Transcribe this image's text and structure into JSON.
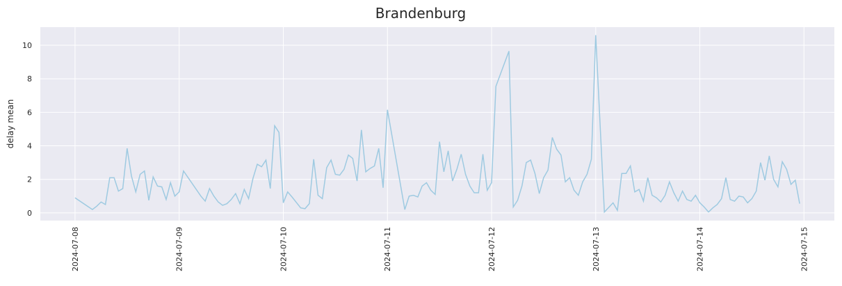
{
  "chart_data": {
    "type": "line",
    "title": "Brandenburg",
    "y_label": "delay mean",
    "grid": true,
    "background": "#eaeaf2",
    "xlim": [
      -8,
      175
    ],
    "ylim": [
      -0.46,
      11.08
    ],
    "xticks": [
      {
        "value": 0,
        "label": "2024-07-08"
      },
      {
        "value": 24,
        "label": "2024-07-09"
      },
      {
        "value": 48,
        "label": "2024-07-10"
      },
      {
        "value": 72,
        "label": "2024-07-11"
      },
      {
        "value": 96,
        "label": "2024-07-12"
      },
      {
        "value": 120,
        "label": "2024-07-13"
      },
      {
        "value": 144,
        "label": "2024-07-14"
      },
      {
        "value": 168,
        "label": "2024-07-15"
      }
    ],
    "yticks": [
      0,
      2,
      4,
      6,
      8,
      10
    ],
    "series": [
      {
        "color": "#9ecae1",
        "x": [
          0,
          4,
          5,
          6,
          7,
          8,
          9,
          10,
          11,
          12,
          13,
          14,
          15,
          16,
          17,
          18,
          19,
          20,
          21,
          22,
          23,
          24,
          25,
          29,
          30,
          31,
          32,
          33,
          34,
          35,
          36,
          37,
          38,
          39,
          40,
          41,
          42,
          43,
          44,
          45,
          46,
          47,
          48,
          49,
          50,
          52,
          53,
          54,
          55,
          56,
          57,
          58,
          59,
          60,
          61,
          62,
          63,
          64,
          65,
          66,
          67,
          68,
          69,
          70,
          71,
          72,
          76,
          77,
          78,
          79,
          80,
          81,
          82,
          83,
          84,
          85,
          86,
          87,
          88,
          89,
          90,
          91,
          92,
          93,
          94,
          95,
          96,
          97,
          100,
          101,
          102,
          103,
          104,
          105,
          106,
          107,
          108,
          109,
          110,
          111,
          112,
          113,
          114,
          115,
          116,
          117,
          118,
          119,
          120,
          122,
          124,
          125,
          126,
          127,
          128,
          129,
          130,
          131,
          132,
          133,
          134,
          135,
          136,
          137,
          138,
          139,
          140,
          141,
          142,
          143,
          144,
          145,
          146,
          147,
          148,
          149,
          150,
          151,
          152,
          153,
          154,
          155,
          156,
          157,
          158,
          159,
          160,
          161,
          162,
          163,
          164,
          165,
          166,
          167
        ],
        "values": [
          0.9,
          0.2,
          0.4,
          0.65,
          0.5,
          2.1,
          2.1,
          1.3,
          1.45,
          3.85,
          2.2,
          1.25,
          2.3,
          2.5,
          0.75,
          2.15,
          1.6,
          1.55,
          0.8,
          1.8,
          1.0,
          1.25,
          2.5,
          1.0,
          0.7,
          1.45,
          1.0,
          0.65,
          0.45,
          0.55,
          0.8,
          1.15,
          0.55,
          1.4,
          0.85,
          2.05,
          2.9,
          2.75,
          3.15,
          1.45,
          5.2,
          4.8,
          0.6,
          1.25,
          0.95,
          0.3,
          0.25,
          0.55,
          3.2,
          1.05,
          0.85,
          2.7,
          3.15,
          2.3,
          2.25,
          2.6,
          3.45,
          3.25,
          1.9,
          4.95,
          2.45,
          2.65,
          2.8,
          3.85,
          1.5,
          6.15,
          0.2,
          1.0,
          1.05,
          0.95,
          1.6,
          1.8,
          1.35,
          1.1,
          4.25,
          2.45,
          3.7,
          1.9,
          2.6,
          3.5,
          2.3,
          1.6,
          1.2,
          1.2,
          3.5,
          1.35,
          1.8,
          7.55,
          9.65,
          0.35,
          0.75,
          1.6,
          3.0,
          3.15,
          2.35,
          1.15,
          2.1,
          2.55,
          4.5,
          3.8,
          3.45,
          1.85,
          2.1,
          1.35,
          1.05,
          1.85,
          2.3,
          3.2,
          10.6,
          0.05,
          0.6,
          0.15,
          2.35,
          2.35,
          2.8,
          1.25,
          1.4,
          0.7,
          2.1,
          1.05,
          0.9,
          0.65,
          1.05,
          1.85,
          1.2,
          0.7,
          1.3,
          0.8,
          0.7,
          1.05,
          0.6,
          0.35,
          0.05,
          0.3,
          0.5,
          0.85,
          2.1,
          0.8,
          0.7,
          1.0,
          0.95,
          0.6,
          0.85,
          1.3,
          3.0,
          1.95,
          3.4,
          2.0,
          1.55,
          3.05,
          2.6,
          1.7,
          1.95,
          0.55
        ]
      }
    ]
  }
}
